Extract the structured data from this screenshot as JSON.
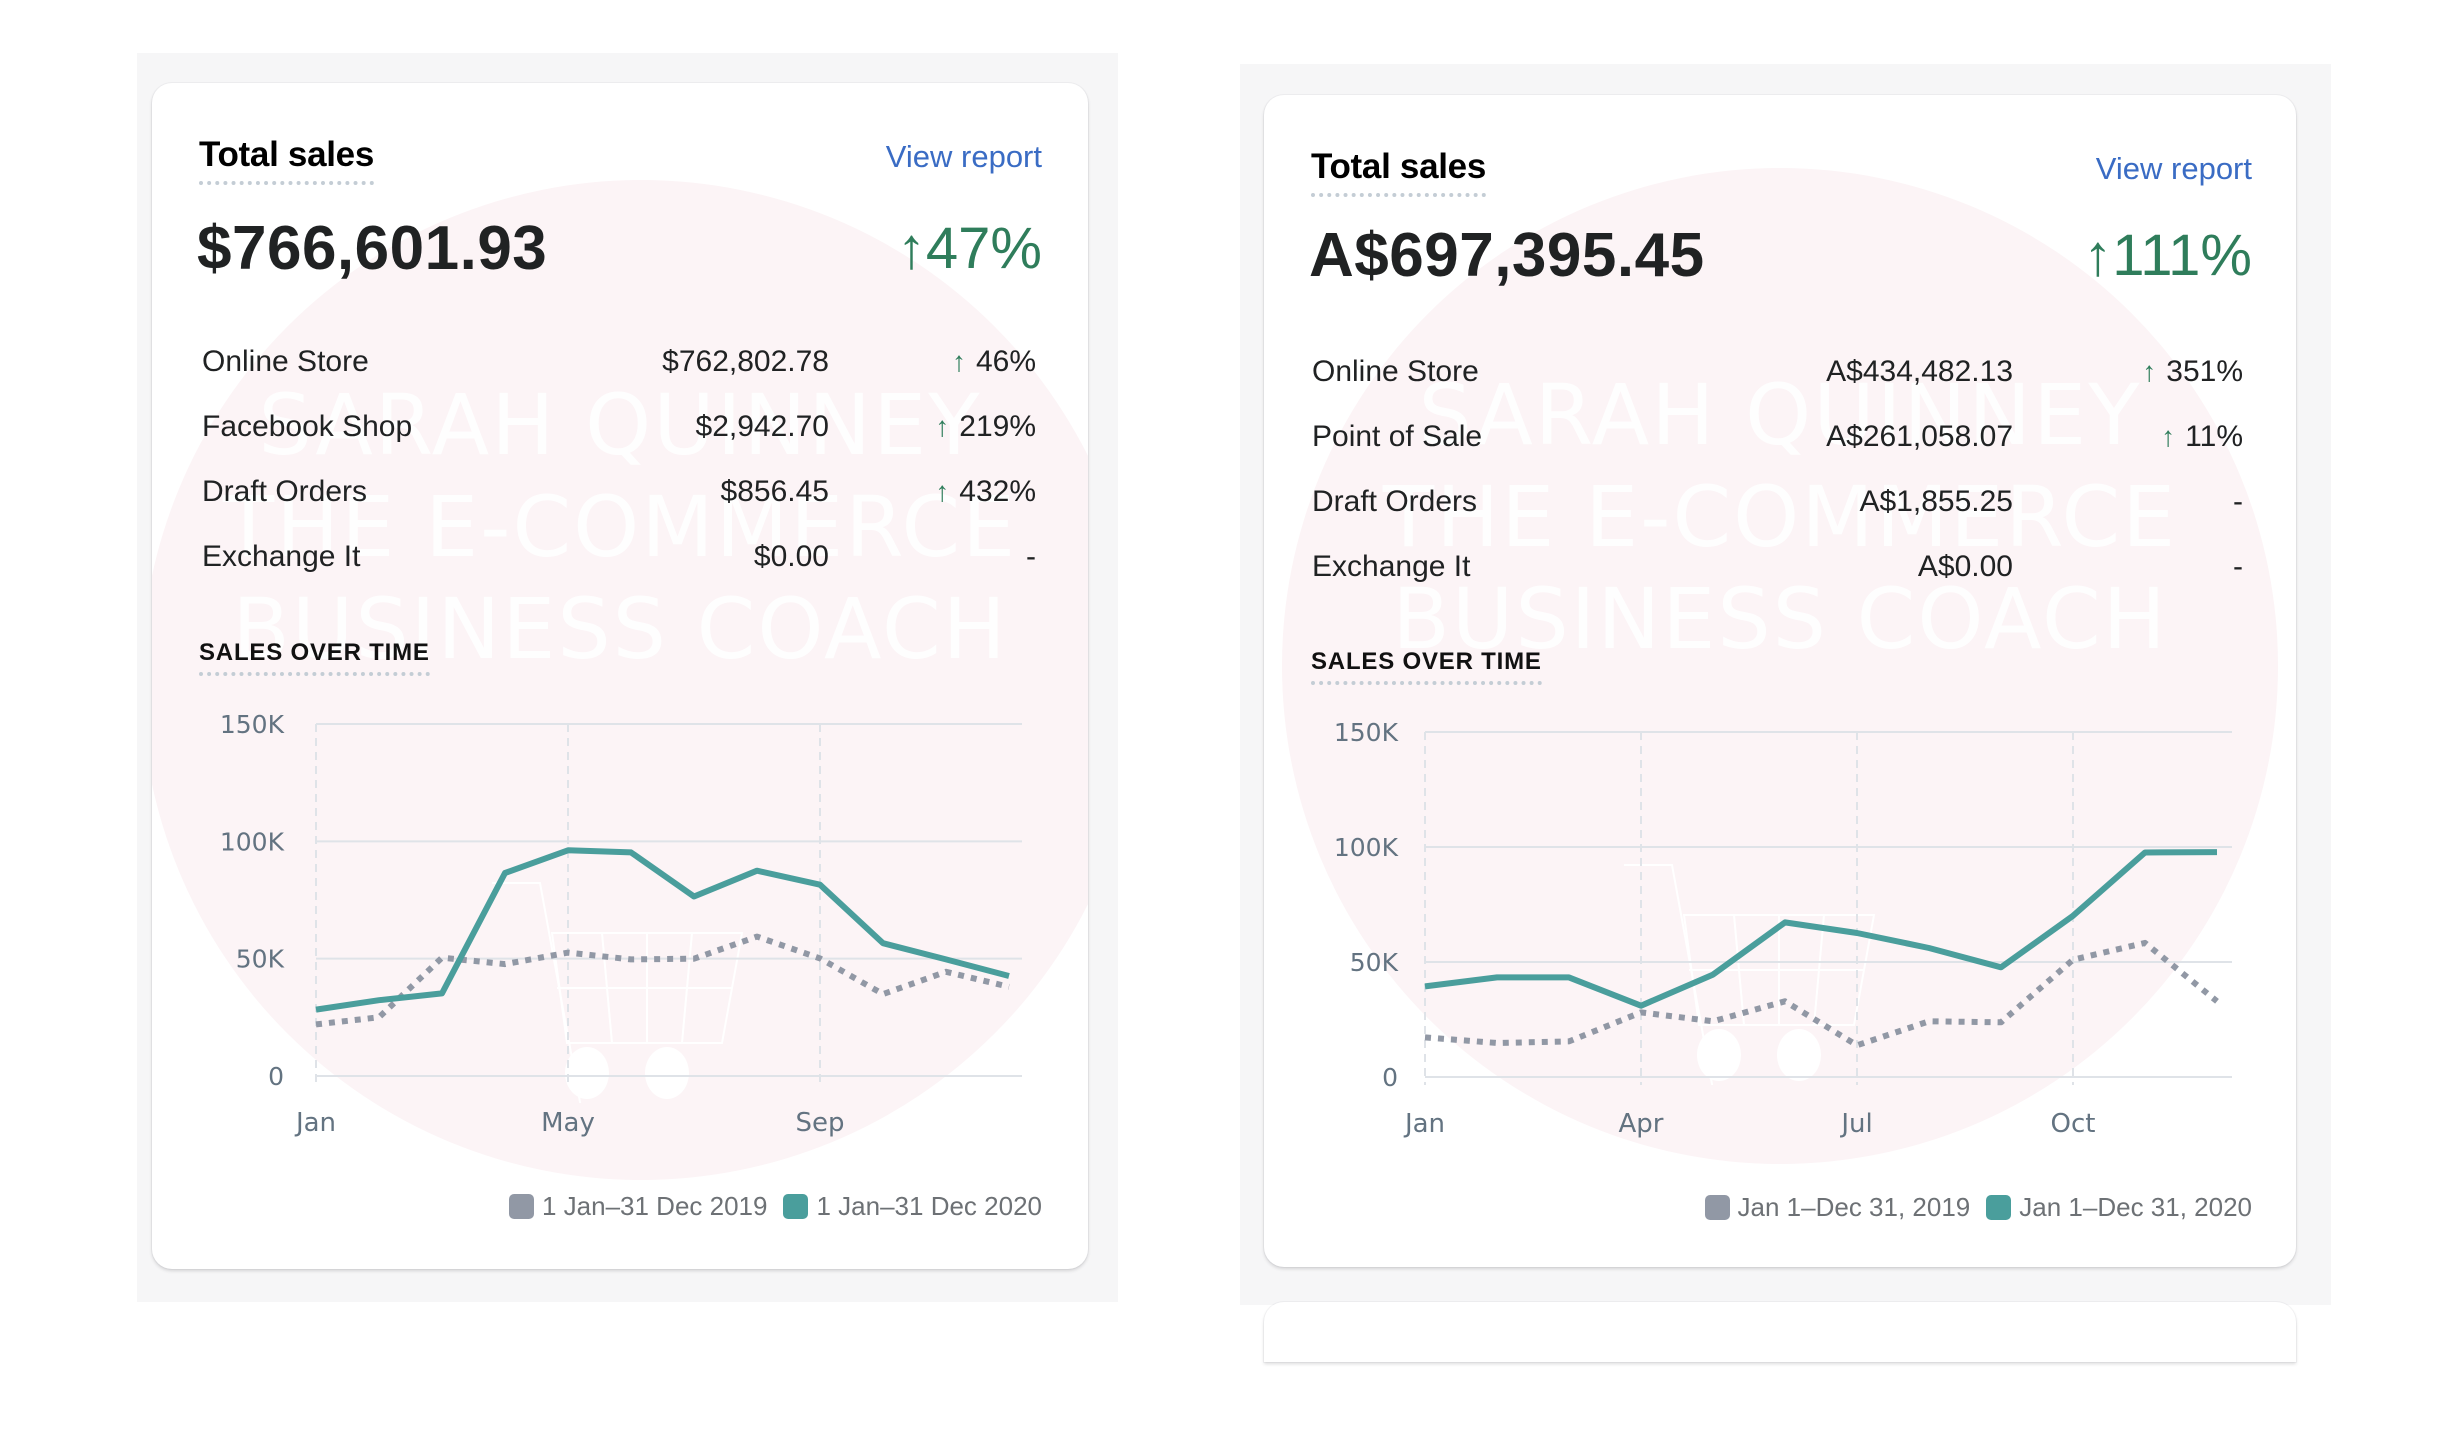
{
  "colors": {
    "accent_teal": "#4a9e9c",
    "prev_gray": "#9198a5",
    "positive_green": "#2f7d5b",
    "link_blue": "#3a6cc4",
    "watermark_pink": "#fcf4f6"
  },
  "watermark": {
    "lines": [
      "SARAH QUINNEY",
      "THE E-COMMERCE",
      "BUSINESS COACH"
    ],
    "icon": "shopping-cart-icon"
  },
  "cards": [
    {
      "title": "Total sales",
      "view_report": "View report",
      "total": "$766,601.93",
      "change_arrow": "↑",
      "change": "47%",
      "channels": [
        {
          "label": "Online Store",
          "value": "$762,802.78",
          "arrow": "↑",
          "change": "46%"
        },
        {
          "label": "Facebook Shop",
          "value": "$2,942.70",
          "arrow": "↑",
          "change": "219%"
        },
        {
          "label": "Draft Orders",
          "value": "$856.45",
          "arrow": "↑",
          "change": "432%"
        },
        {
          "label": "Exchange It",
          "value": "$0.00",
          "arrow": "",
          "change": "-"
        }
      ],
      "section_title": "SALES OVER TIME",
      "legend": [
        "1 Jan–31 Dec 2019",
        "1 Jan–31 Dec 2020"
      ]
    },
    {
      "title": "Total sales",
      "view_report": "View report",
      "total": "A$697,395.45",
      "change_arrow": "↑",
      "change": "111%",
      "channels": [
        {
          "label": "Online Store",
          "value": "A$434,482.13",
          "arrow": "↑",
          "change": "351%"
        },
        {
          "label": "Point of Sale",
          "value": "A$261,058.07",
          "arrow": "↑",
          "change": "11%"
        },
        {
          "label": "Draft Orders",
          "value": "A$1,855.25",
          "arrow": "",
          "change": "-"
        },
        {
          "label": "Exchange It",
          "value": "A$0.00",
          "arrow": "",
          "change": "-"
        }
      ],
      "section_title": "SALES OVER TIME",
      "legend": [
        "Jan 1–Dec 31, 2019",
        "Jan 1–Dec 31, 2020"
      ]
    }
  ],
  "chart_data": [
    {
      "type": "line",
      "title": "SALES OVER TIME",
      "xlabel": "",
      "ylabel": "",
      "x": [
        "Jan",
        "Feb",
        "Mar",
        "Apr",
        "May",
        "Jun",
        "Jul",
        "Aug",
        "Sep",
        "Oct",
        "Nov",
        "Dec"
      ],
      "x_tick_labels": [
        "Jan",
        "May",
        "Sep"
      ],
      "x_tick_indices": [
        0,
        4,
        8
      ],
      "y_ticks": [
        0,
        50000,
        100000,
        150000
      ],
      "y_tick_labels": [
        "0",
        "50K",
        "100K",
        "150K"
      ],
      "ylim": [
        0,
        150000
      ],
      "grid": true,
      "legend_position": "bottom-right",
      "series": [
        {
          "name": "1 Jan–31 Dec 2019",
          "style": "dotted",
          "color": "#9198a5",
          "values": [
            22000,
            25000,
            50400,
            47700,
            52600,
            49700,
            50000,
            59400,
            50100,
            34900,
            44400,
            38000
          ]
        },
        {
          "name": "1 Jan–31 Dec 2020",
          "style": "solid",
          "color": "#4a9e9c",
          "values": [
            28300,
            32300,
            35200,
            86500,
            96200,
            95300,
            76500,
            87500,
            81500,
            56600,
            49700,
            42600
          ]
        }
      ]
    },
    {
      "type": "line",
      "title": "SALES OVER TIME",
      "xlabel": "",
      "ylabel": "",
      "x": [
        "Jan",
        "Feb",
        "Mar",
        "Apr",
        "May",
        "Jun",
        "Jul",
        "Aug",
        "Sep",
        "Oct",
        "Nov",
        "Dec"
      ],
      "x_tick_labels": [
        "Jan",
        "Apr",
        "Jul",
        "Oct"
      ],
      "x_tick_indices": [
        0,
        3,
        6,
        9
      ],
      "y_ticks": [
        0,
        50000,
        100000,
        150000
      ],
      "y_tick_labels": [
        "0",
        "50K",
        "100K",
        "150K"
      ],
      "ylim": [
        0,
        150000
      ],
      "grid": true,
      "legend_position": "bottom-right",
      "series": [
        {
          "name": "Jan 1–Dec 31, 2019",
          "style": "dotted",
          "color": "#9198a5",
          "values": [
            17200,
            14800,
            15500,
            28100,
            24200,
            32900,
            13800,
            24200,
            23800,
            51000,
            58300,
            32900
          ]
        },
        {
          "name": "Jan 1–Dec 31, 2020",
          "style": "solid",
          "color": "#4a9e9c",
          "values": [
            39400,
            43300,
            43300,
            31000,
            44500,
            67200,
            62600,
            56100,
            47700,
            70100,
            97600,
            97800
          ]
        }
      ]
    }
  ]
}
